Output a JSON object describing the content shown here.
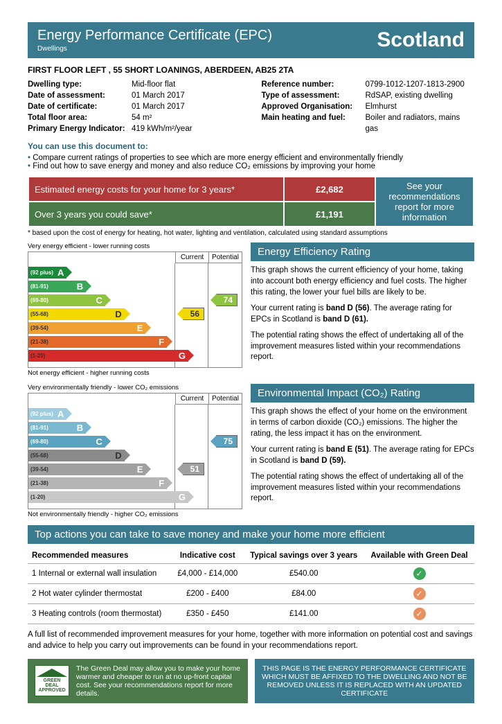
{
  "header": {
    "title": "Energy Performance Certificate (EPC)",
    "sub": "Dwellings",
    "region": "Scotland"
  },
  "address": "FIRST FLOOR LEFT , 55 SHORT LOANINGS, ABERDEEN, AB25 2TA",
  "details_left": [
    {
      "lbl": "Dwelling type:",
      "val": "Mid-floor flat"
    },
    {
      "lbl": "Date of assessment:",
      "val": "01 March 2017"
    },
    {
      "lbl": "Date of certificate:",
      "val": "01 March 2017"
    },
    {
      "lbl": "Total floor area:",
      "val": "54 m²"
    },
    {
      "lbl": "Primary Energy Indicator:",
      "val": "419 kWh/m²/year"
    }
  ],
  "details_right": [
    {
      "lbl": "Reference number:",
      "val": "0799-1012-1207-1813-2900"
    },
    {
      "lbl": "Type of assessment:",
      "val": "RdSAP, existing dwelling"
    },
    {
      "lbl": "Approved Organisation:",
      "val": "Elmhurst"
    },
    {
      "lbl": "Main heating and fuel:",
      "val": "Boiler and radiators, mains gas"
    }
  ],
  "usedoc": "You can use this document to:",
  "bullets": [
    "Compare current ratings of properties to see which are more energy efficient and environmentally friendly",
    "Find out how to save energy and money and also reduce CO₂ emissions by improving your home"
  ],
  "costs": {
    "row1_label": "Estimated energy costs for your home for 3 years*",
    "row1_val": "£2,682",
    "row2_label": "Over 3 years you could save*",
    "row2_val": "£1,191",
    "info": "See your recommendations report for more information",
    "colors": {
      "red": "#b03a3a",
      "green": "#4a7a4a",
      "teal": "#3a7a8f"
    }
  },
  "footnote": "* based upon the cost of energy for heating, hot water, lighting and ventilation, calculated using standard assumptions",
  "bands": [
    {
      "letter": "A",
      "range": "(92 plus)",
      "width_pct": 18
    },
    {
      "letter": "B",
      "range": "(81-91)",
      "width_pct": 27
    },
    {
      "letter": "C",
      "range": "(69-80)",
      "width_pct": 36
    },
    {
      "letter": "D",
      "range": "(55-68)",
      "width_pct": 45
    },
    {
      "letter": "E",
      "range": "(39-54)",
      "width_pct": 55
    },
    {
      "letter": "F",
      "range": "(21-38)",
      "width_pct": 65
    },
    {
      "letter": "G",
      "range": "(1-20)",
      "width_pct": 75
    }
  ],
  "eff_colors": [
    "#1a8a3a",
    "#3aa657",
    "#8fc43f",
    "#f2d900",
    "#f0a030",
    "#e36a2a",
    "#d42a2a"
  ],
  "env_colors": [
    "#9ecde0",
    "#7ab8d0",
    "#5aa3c0",
    "#8a8a8a",
    "#a0a0a0",
    "#b5b5b5",
    "#c8c8c8"
  ],
  "chart_headers": {
    "current": "Current",
    "potential": "Potential"
  },
  "chart1": {
    "top_caption": "Very energy efficient - lower running costs",
    "bot_caption": "Not energy efficient - higher running costs",
    "current": {
      "val": "56",
      "band_idx": 3,
      "color": "#f2d900"
    },
    "potential": {
      "val": "74",
      "band_idx": 2,
      "color": "#8fc43f"
    }
  },
  "chart2": {
    "top_caption": "Very environmentally friendly - lower CO₂ emissions",
    "bot_caption": "Not environmentally friendly - higher CO₂ emissions",
    "current": {
      "val": "51",
      "band_idx": 4,
      "color": "#a0a0a0"
    },
    "potential": {
      "val": "75",
      "band_idx": 2,
      "color": "#5aa3c0"
    }
  },
  "eff_section": {
    "title": "Energy Efficiency Rating",
    "paras": [
      "This graph shows the current efficiency of your home, taking into account both energy efficiency and fuel costs. The higher this rating, the lower your fuel bills are likely to be.",
      "Your current rating is <b>band D (56)</b>. The average rating for EPCs in Scotland is <b>band D (61).</b>",
      "The potential rating shows the effect of undertaking all of the improvement measures listed within your recommendations report."
    ]
  },
  "env_section": {
    "title": "Environmental Impact (CO₂) Rating",
    "paras": [
      "This graph shows the effect of your home on the environment in terms of carbon dioxide (CO₂) emissions. The higher the rating, the less impact it has on the environment.",
      "Your current rating is <b>band E (51)</b>. The average rating for EPCs in Scotland is <b>band D (59).</b>",
      "The potential rating shows the effect of undertaking all of the improvement measures listed within your recommendations report."
    ]
  },
  "top_actions_title": "Top actions you can take to save money and make your home more efficient",
  "rec_headers": [
    "Recommended measures",
    "Indicative cost",
    "Typical savings over 3 years",
    "Available with Green Deal"
  ],
  "rec_rows": [
    {
      "m": "1 Internal or external wall insulation",
      "c": "£4,000 - £14,000",
      "s": "£540.00",
      "g": "green"
    },
    {
      "m": "2 Hot water cylinder thermostat",
      "c": "£200 - £400",
      "s": "£84.00",
      "g": "orange"
    },
    {
      "m": "3 Heating controls (room thermostat)",
      "c": "£350 - £450",
      "s": "£141.00",
      "g": "orange"
    }
  ],
  "after_table": "A full list of recommended improvement measures for your home, together with more information on potential cost and savings and advice to help you carry out improvements can be found in your recommendations report.",
  "green_deal": {
    "logo_top": "GREEN DEAL",
    "logo_bot": "APPROVED",
    "text": "The Green Deal may allow you to make your home warmer and cheaper to run at no up-front capital cost. See your recommendations report for more details."
  },
  "affix": "THIS PAGE IS THE ENERGY PERFORMANCE CERTIFICATE WHICH MUST BE AFFIXED TO THE DWELLING AND NOT BE REMOVED UNLESS IT IS REPLACED WITH AN UPDATED CERTIFICATE"
}
